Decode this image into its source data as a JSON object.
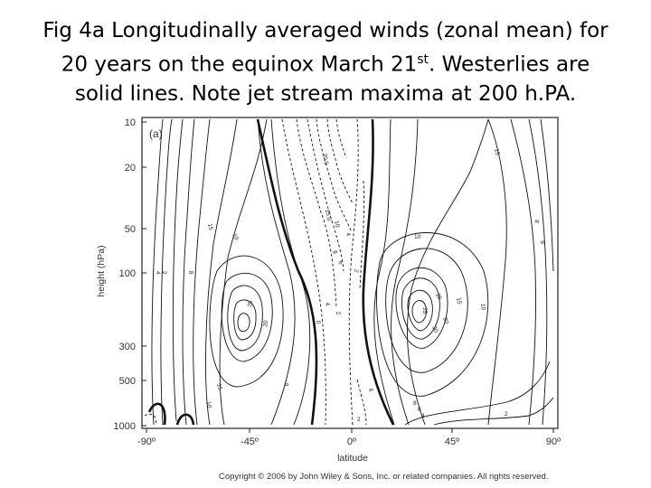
{
  "slide": {
    "title_line1": "Fig 4a Longitudinally averaged winds (zonal mean) for",
    "title_line2_pre": "20 years on the equinox March 21",
    "title_line2_sup": "st",
    "title_line2_post": ". Westerlies are",
    "title_line3": "solid lines. Note jet stream maxima at 200 h.PA."
  },
  "figure": {
    "panel_label": "(a)",
    "y_axis_label": "height (hPa)",
    "x_axis_label": "latitude",
    "y_ticks": [
      "10",
      "20",
      "50",
      "100",
      "300",
      "500",
      "1000"
    ],
    "x_ticks": [
      "-90º",
      "-45º",
      "0º",
      "45º",
      "90º"
    ],
    "contour_labels": [
      "15",
      "10",
      "8",
      "4",
      "2",
      "25",
      "20",
      "15",
      "10",
      "6",
      "20.0",
      "15.0",
      "10",
      "4",
      "8",
      "6",
      "2",
      "0",
      "4",
      "2",
      "6",
      "10",
      "25",
      "35",
      "30",
      "20",
      "15",
      "10",
      "15",
      "8",
      "6",
      "8",
      "6",
      "4",
      "2",
      "2"
    ],
    "copyright": "Copyright © 2006 by John Wiley & Sons, Inc. or related companies. All rights reserved."
  }
}
